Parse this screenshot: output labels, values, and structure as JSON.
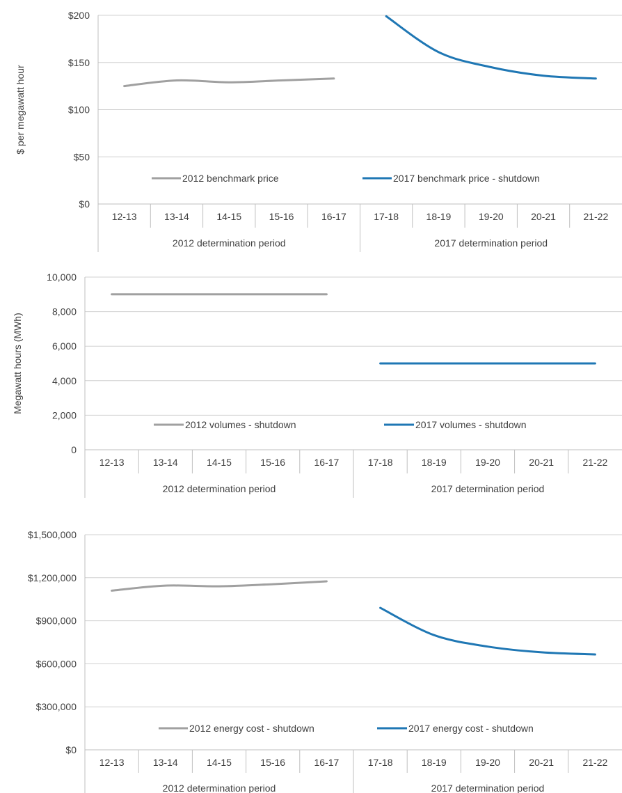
{
  "colors": {
    "series_2012": "#a0a0a0",
    "series_2017": "#1f77b4",
    "grid": "#d0d0d0",
    "axis": "#bfbfbf",
    "text": "#404040"
  },
  "chart_data": [
    {
      "type": "line",
      "ylabel": "$ per megawatt hour",
      "ylim": [
        0,
        200
      ],
      "yticks": [
        0,
        50,
        100,
        150,
        200
      ],
      "ytick_labels": [
        "$0",
        "$50",
        "$100",
        "$150",
        "$200"
      ],
      "categories": [
        "12-13",
        "13-14",
        "14-15",
        "15-16",
        "16-17",
        "17-18",
        "18-19",
        "19-20",
        "20-21",
        "21-22"
      ],
      "groups": [
        {
          "label": "2012 determination period",
          "start": 0,
          "end": 4
        },
        {
          "label": "2017 determination period",
          "start": 5,
          "end": 9
        }
      ],
      "grid": true,
      "legend_position": "bottom",
      "series": [
        {
          "name": "2012 benchmark price",
          "color": "#a0a0a0",
          "values": [
            125,
            131,
            129,
            131,
            133,
            null,
            null,
            null,
            null,
            null
          ]
        },
        {
          "name": "2017 benchmark price - shutdown",
          "color": "#1f77b4",
          "values": [
            null,
            null,
            null,
            null,
            null,
            199,
            161,
            145,
            136,
            133
          ]
        }
      ]
    },
    {
      "type": "line",
      "ylabel": "Megawatt hours (MWh)",
      "ylim": [
        0,
        10000
      ],
      "yticks": [
        0,
        2000,
        4000,
        6000,
        8000,
        10000
      ],
      "ytick_labels": [
        "0",
        "2,000",
        "4,000",
        "6,000",
        "8,000",
        "10,000"
      ],
      "categories": [
        "12-13",
        "13-14",
        "14-15",
        "15-16",
        "16-17",
        "17-18",
        "18-19",
        "19-20",
        "20-21",
        "21-22"
      ],
      "groups": [
        {
          "label": "2012 determination period",
          "start": 0,
          "end": 4
        },
        {
          "label": "2017 determination period",
          "start": 5,
          "end": 9
        }
      ],
      "grid": true,
      "legend_position": "bottom",
      "series": [
        {
          "name": "2012 volumes - shutdown",
          "color": "#a0a0a0",
          "values": [
            9000,
            9000,
            9000,
            9000,
            9000,
            null,
            null,
            null,
            null,
            null
          ]
        },
        {
          "name": "2017 volumes - shutdown",
          "color": "#1f77b4",
          "values": [
            null,
            null,
            null,
            null,
            null,
            5000,
            5000,
            5000,
            5000,
            5000
          ]
        }
      ]
    },
    {
      "type": "line",
      "ylabel": "",
      "ylim": [
        0,
        1500000
      ],
      "yticks": [
        0,
        300000,
        600000,
        900000,
        1200000,
        1500000
      ],
      "ytick_labels": [
        "$0",
        "$300,000",
        "$600,000",
        "$900,000",
        "$1,200,000",
        "$1,500,000"
      ],
      "categories": [
        "12-13",
        "13-14",
        "14-15",
        "15-16",
        "16-17",
        "17-18",
        "18-19",
        "19-20",
        "20-21",
        "21-22"
      ],
      "groups": [
        {
          "label": "2012 determination period",
          "start": 0,
          "end": 4
        },
        {
          "label": "2017 determination period",
          "start": 5,
          "end": 9
        }
      ],
      "grid": true,
      "legend_position": "bottom",
      "series": [
        {
          "name": "2012 energy cost - shutdown",
          "color": "#a0a0a0",
          "values": [
            1110000,
            1145000,
            1140000,
            1155000,
            1175000,
            null,
            null,
            null,
            null,
            null
          ]
        },
        {
          "name": "2017 energy cost - shutdown",
          "color": "#1f77b4",
          "values": [
            null,
            null,
            null,
            null,
            null,
            990000,
            800000,
            720000,
            680000,
            665000
          ]
        }
      ]
    }
  ]
}
